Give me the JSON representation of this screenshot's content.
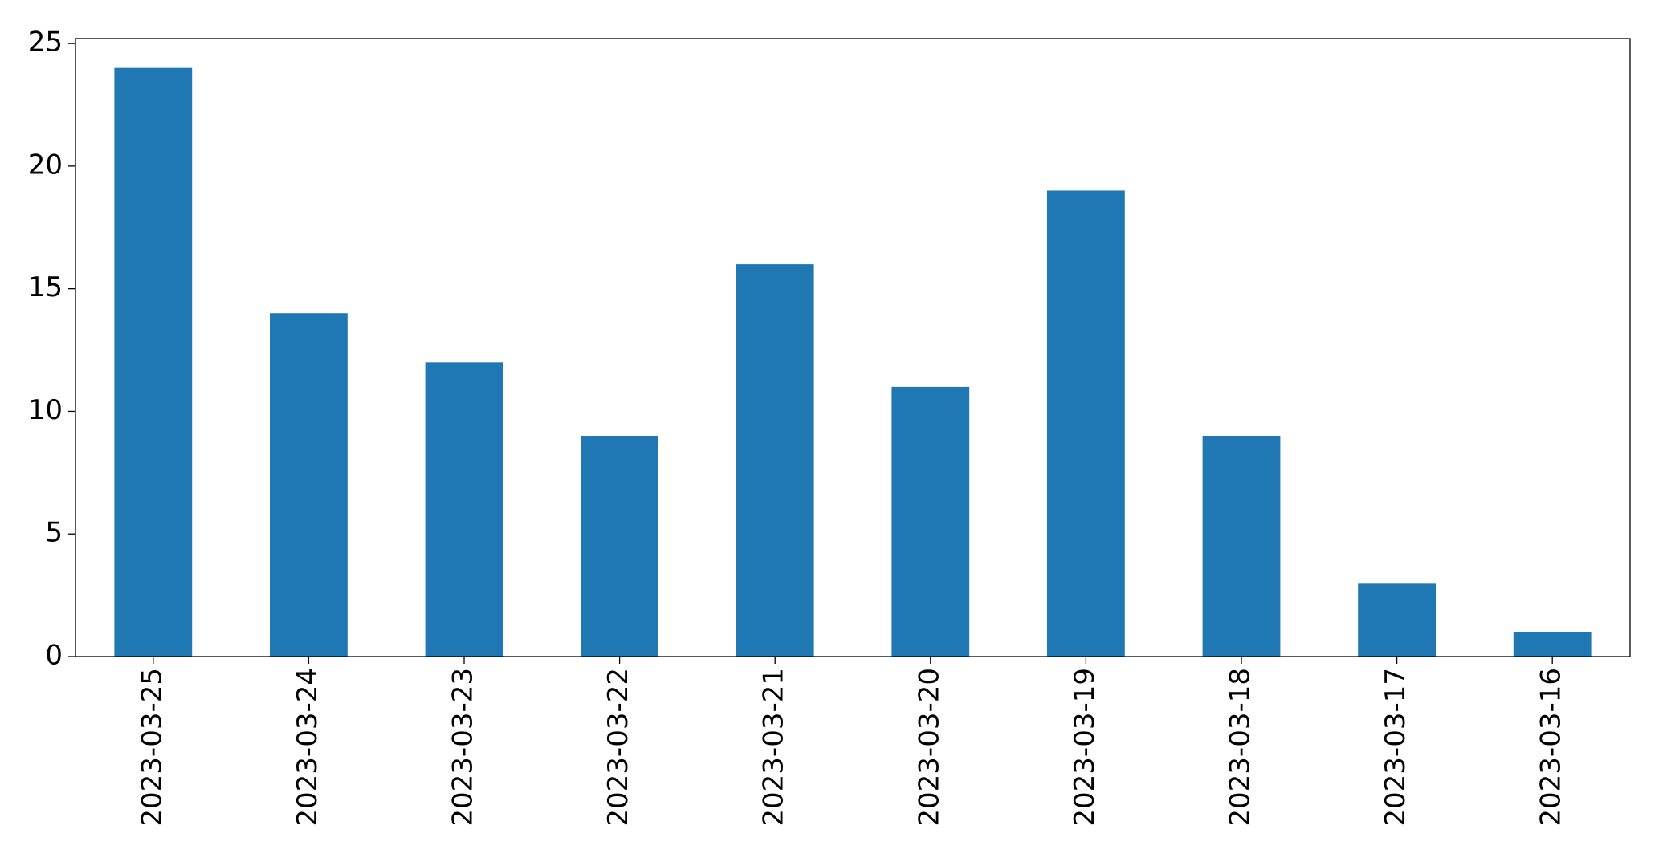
{
  "chart_data": {
    "type": "bar",
    "categories": [
      "2023-03-25",
      "2023-03-24",
      "2023-03-23",
      "2023-03-22",
      "2023-03-21",
      "2023-03-20",
      "2023-03-19",
      "2023-03-18",
      "2023-03-17",
      "2023-03-16"
    ],
    "values": [
      24,
      14,
      12,
      9,
      16,
      11,
      19,
      9,
      3,
      1
    ],
    "color": "#1f77b4",
    "ylim": [
      0,
      25.2
    ],
    "yticks": [
      0,
      5,
      10,
      15,
      20,
      25
    ],
    "grid": false
  }
}
